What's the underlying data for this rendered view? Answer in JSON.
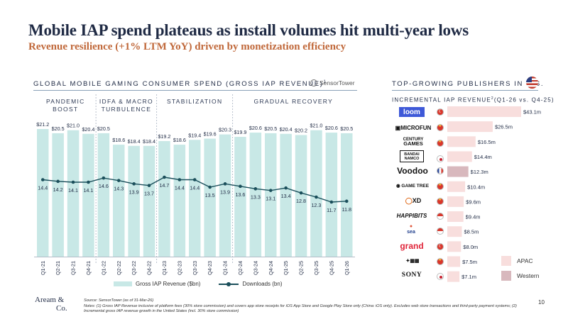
{
  "title": "Mobile IAP spend plateaus as install volumes hit multi-year lows",
  "subtitle": "Revenue resilience (+1% LTM YoY) driven by monetization efficiency",
  "left_section": {
    "heading": "GLOBAL MOBILE GAMING CONSUMER SPEND (GROSS IAP REVENUE)",
    "heading_sup": "1",
    "source_logo": "SensorTower",
    "phases": [
      {
        "label_line1": "PANDEMIC",
        "label_line2": "BOOST"
      },
      {
        "label_line1": "IDFA & MACRO",
        "label_line2": "TURBULENCE"
      },
      {
        "label_line1": "STABILIZATION",
        "label_line2": ""
      },
      {
        "label_line1": "GRADUAL RECOVERY",
        "label_line2": ""
      }
    ],
    "legend": {
      "bars": "Gross IAP Revenue ($bn)",
      "line": "Downloads (bn)"
    }
  },
  "right_section": {
    "heading": "TOP-GROWING PUBLISHERS IN U.S.",
    "subheading": "INCREMENTAL IAP REVENUE",
    "subheading_sup": "2",
    "subheading_suffix": "(Q1-26 vs. Q4-25)",
    "legend": [
      {
        "label": "APAC",
        "color": "#f8dedd"
      },
      {
        "label": "Western",
        "color": "#d8b8bd"
      }
    ]
  },
  "chart_data": [
    {
      "type": "bar",
      "title": "GLOBAL MOBILE GAMING CONSUMER SPEND (GROSS IAP REVENUE)",
      "categories": [
        "Q1-21",
        "Q2-21",
        "Q3-21",
        "Q4-21",
        "Q1-22",
        "Q2-22",
        "Q3-22",
        "Q4-22",
        "Q1-23",
        "Q2-23",
        "Q3-23",
        "Q4-23",
        "Q1-24",
        "Q2-24",
        "Q3-24",
        "Q4-24",
        "Q1-25",
        "Q2-25",
        "Q3-25",
        "Q4-25",
        "Q1-26"
      ],
      "series": [
        {
          "name": "Gross IAP Revenue ($bn)",
          "type": "bar",
          "color": "#c8e8e6",
          "values": [
            21.2,
            20.5,
            21.0,
            20.4,
            20.5,
            18.6,
            18.4,
            18.4,
            19.2,
            18.6,
            19.4,
            19.6,
            20.3,
            19.9,
            20.6,
            20.5,
            20.4,
            20.2,
            21.0,
            20.6,
            20.5
          ],
          "labels": [
            "$21.2",
            "$20.5",
            "$21.0",
            "$20.4",
            "$20.5",
            "$18.6",
            "$18.4",
            "$18.4",
            "$19.2",
            "$18.6",
            "$19.4",
            "$19.6",
            "$20.3",
            "$19.9",
            "$20.6",
            "$20.5",
            "$20.4",
            "$20.2",
            "$21.0",
            "$20.6",
            "$20.5"
          ]
        },
        {
          "name": "Downloads (bn)",
          "type": "line",
          "color": "#1b4f5b",
          "values": [
            14.4,
            14.2,
            14.1,
            14.1,
            14.6,
            14.3,
            13.9,
            13.7,
            14.7,
            14.4,
            14.4,
            13.5,
            13.9,
            13.6,
            13.3,
            13.1,
            13.4,
            12.8,
            12.3,
            11.7,
            11.8
          ]
        }
      ],
      "ylim": [
        0,
        22
      ],
      "grid": false,
      "legend_position": "bottom"
    },
    {
      "type": "bar",
      "orientation": "horizontal",
      "title": "INCREMENTAL IAP REVENUE (Q1-26 vs. Q4-25)",
      "categories": [
        "loom",
        "MICROFUN",
        "CENTURY GAMES",
        "BANDAI NAMCO",
        "Voodoo",
        "GAME TREE",
        "XD",
        "HAPPIBITS",
        "sea",
        "grand",
        "Legend of Mushroom",
        "SONY"
      ],
      "values": [
        43.1,
        26.5,
        16.5,
        14.4,
        12.3,
        10.4,
        9.6,
        9.4,
        8.5,
        8.0,
        7.5,
        7.1
      ],
      "labels": [
        "$43.1m",
        "$26.5m",
        "$16.5m",
        "$14.4m",
        "$12.3m",
        "$10.4m",
        "$9.6m",
        "$9.4m",
        "$8.5m",
        "$8.0m",
        "$7.5m",
        "$7.1m"
      ],
      "regions": [
        "APAC",
        "APAC",
        "APAC",
        "APAC",
        "Western",
        "APAC",
        "APAC",
        "APAC",
        "APAC",
        "APAC",
        "APAC",
        "APAC"
      ],
      "flags": [
        "tr",
        "cn",
        "cn",
        "jp",
        "fr",
        "cn",
        "cn",
        "sg",
        "sg",
        "tr",
        "cn",
        "jp"
      ],
      "legend_position": "bottom-right"
    }
  ],
  "footer": {
    "brand_line1": "Aream &",
    "brand_line2": "Co.",
    "source": "Source: SensorTower (as of 31-Mar-26)",
    "notes": "Notes: (1) Gross IAP Revenue inclusive of platform fees (30% store commission) and covers app store receipts for iOS App Store and Google Play Store only (China: iOS only). Excludes web store transactions and third-party payment systems; (2) Incremental gross IAP revenue growth in the United States (incl. 30% store commission)",
    "page_number": "10"
  }
}
